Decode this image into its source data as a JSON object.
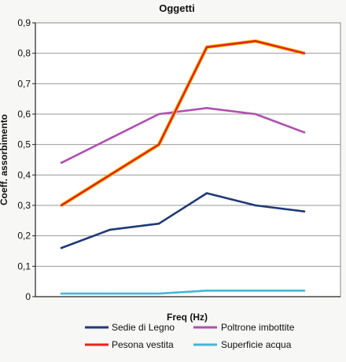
{
  "chart_data": {
    "type": "line",
    "title": "Oggetti",
    "xlabel": "Freq (Hz)",
    "ylabel": "Coeff. assorbimento",
    "ylim": [
      0,
      0.9
    ],
    "ytick_step": 0.1,
    "yticks": [
      "0",
      "0,1",
      "0,2",
      "0,3",
      "0,4",
      "0,5",
      "0,6",
      "0,7",
      "0,8",
      "0,9"
    ],
    "grid": true,
    "legend_placement": "bottom",
    "points_per_series": 6,
    "series": [
      {
        "name": "Sedie di Legno",
        "color": "#1f3a78",
        "values": [
          0.16,
          0.22,
          0.24,
          0.34,
          0.3,
          0.28
        ]
      },
      {
        "name": "Poltrone imbottite",
        "color": "#b04fb0",
        "values": [
          0.44,
          0.52,
          0.6,
          0.62,
          0.6,
          0.54
        ]
      },
      {
        "name": "Pesona vestita",
        "color": "#e8231f",
        "values": [
          0.3,
          0.4,
          0.5,
          0.82,
          0.84,
          0.8
        ]
      },
      {
        "name": "Superficie acqua",
        "color": "#46b6d8",
        "values": [
          0.01,
          0.01,
          0.01,
          0.02,
          0.02,
          0.02
        ]
      }
    ]
  }
}
